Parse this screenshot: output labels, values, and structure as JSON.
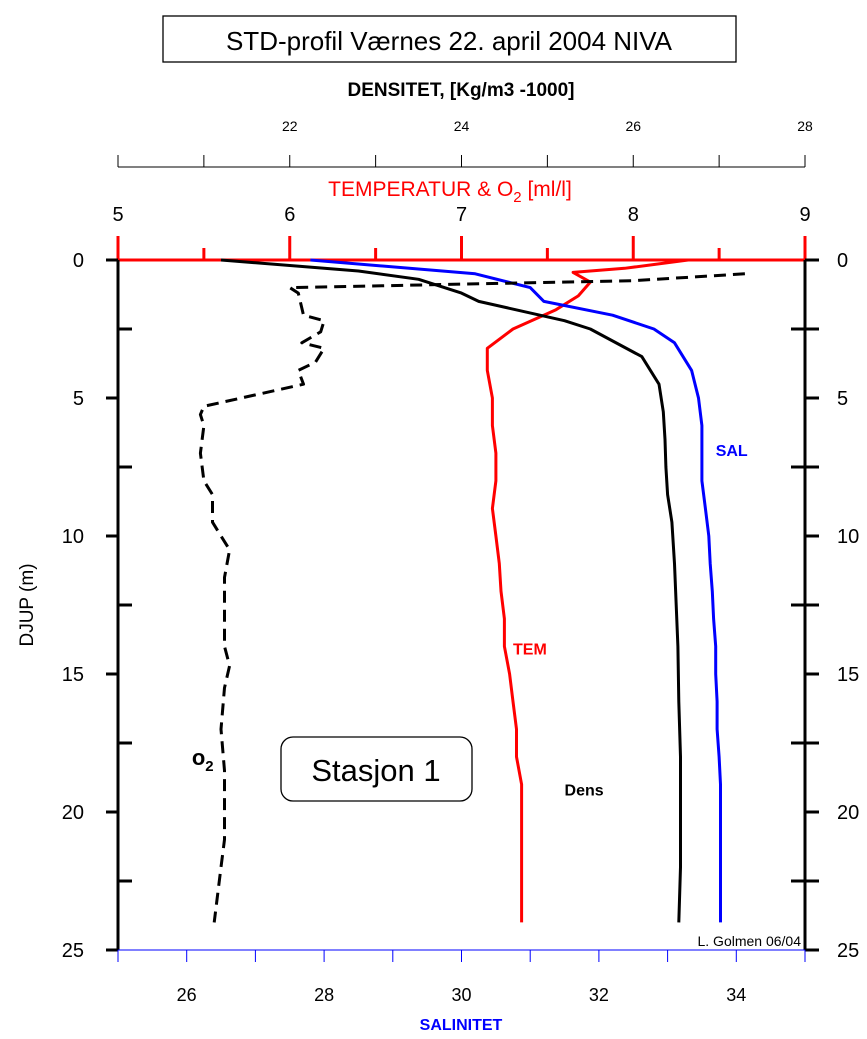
{
  "title": "STD-profil Værnes 22. april 2004 NIVA",
  "station_label": "Stasjon 1",
  "credit": "L. Golmen 06/04",
  "colors": {
    "temperature": "#ff0000",
    "salinity": "#0000ff",
    "density": "#000000",
    "oxygen": "#000000"
  },
  "chart_data": {
    "type": "line",
    "orientation": "vertical-profile",
    "axes": {
      "depth": {
        "label": "DJUP (m)",
        "ylim": [
          0,
          25
        ],
        "inverted": true,
        "ticks": [
          0,
          5,
          10,
          15,
          20,
          25
        ]
      },
      "density": {
        "label": "DENSITET, [Kg/m3 -1000]",
        "position": "top",
        "xlim": [
          20,
          28
        ],
        "ticks": [
          22,
          24,
          26,
          28
        ]
      },
      "temperature_o2": {
        "label_main": "TEMPERATUR & O",
        "label_sub": "2",
        "label_units": " [ml/l]",
        "position": "top",
        "xlim": [
          5,
          9
        ],
        "ticks": [
          5,
          6,
          7,
          8,
          9
        ]
      },
      "salinity": {
        "label": "SALINITET",
        "position": "bottom",
        "xlim": [
          25,
          35
        ],
        "ticks": [
          26,
          28,
          30,
          32,
          34
        ]
      }
    },
    "series": [
      {
        "name": "TEM",
        "axis": "temperature_o2",
        "color": "#ff0000",
        "dash": "solid",
        "label_pos": {
          "x": 7.3,
          "depth": 14.3
        },
        "points": [
          [
            8.32,
            0
          ],
          [
            7.95,
            0.3
          ],
          [
            7.65,
            0.45
          ],
          [
            7.75,
            0.8
          ],
          [
            7.68,
            1.3
          ],
          [
            7.55,
            1.8
          ],
          [
            7.3,
            2.5
          ],
          [
            7.15,
            3.2
          ],
          [
            7.15,
            4.0
          ],
          [
            7.18,
            5.0
          ],
          [
            7.18,
            6.0
          ],
          [
            7.2,
            7.0
          ],
          [
            7.2,
            8.0
          ],
          [
            7.18,
            9.0
          ],
          [
            7.2,
            10.0
          ],
          [
            7.22,
            11.0
          ],
          [
            7.23,
            12.0
          ],
          [
            7.25,
            13.0
          ],
          [
            7.25,
            14.0
          ],
          [
            7.28,
            15.0
          ],
          [
            7.3,
            16.0
          ],
          [
            7.32,
            17.0
          ],
          [
            7.32,
            18.0
          ],
          [
            7.35,
            19.0
          ],
          [
            7.35,
            20.0
          ],
          [
            7.35,
            21.0
          ],
          [
            7.35,
            22.0
          ],
          [
            7.35,
            23.0
          ],
          [
            7.35,
            24.0
          ]
        ]
      },
      {
        "name": "SAL",
        "axis": "salinity",
        "color": "#0000ff",
        "dash": "solid",
        "label_pos": {
          "x": 33.7,
          "depth": 7.1
        },
        "points": [
          [
            27.8,
            0
          ],
          [
            30.2,
            0.5
          ],
          [
            31.0,
            1.0
          ],
          [
            31.2,
            1.5
          ],
          [
            32.2,
            2.0
          ],
          [
            32.8,
            2.5
          ],
          [
            33.1,
            3.0
          ],
          [
            33.35,
            4.0
          ],
          [
            33.45,
            5.0
          ],
          [
            33.5,
            6.0
          ],
          [
            33.5,
            7.0
          ],
          [
            33.5,
            8.0
          ],
          [
            33.55,
            9.0
          ],
          [
            33.6,
            10.0
          ],
          [
            33.62,
            11.0
          ],
          [
            33.65,
            12.0
          ],
          [
            33.67,
            13.0
          ],
          [
            33.7,
            14.0
          ],
          [
            33.7,
            15.0
          ],
          [
            33.72,
            16.0
          ],
          [
            33.72,
            17.0
          ],
          [
            33.75,
            18.0
          ],
          [
            33.77,
            19.0
          ],
          [
            33.77,
            20.0
          ],
          [
            33.77,
            21.0
          ],
          [
            33.77,
            22.0
          ],
          [
            33.77,
            23.0
          ],
          [
            33.77,
            24.0
          ]
        ]
      },
      {
        "name": "Dens",
        "axis": "density",
        "color": "#000000",
        "dash": "solid",
        "label_pos": {
          "x": 25.2,
          "depth": 19.4
        },
        "points": [
          [
            21.2,
            0
          ],
          [
            22.8,
            0.4
          ],
          [
            23.5,
            0.7
          ],
          [
            24.0,
            1.2
          ],
          [
            24.2,
            1.5
          ],
          [
            25.2,
            2.2
          ],
          [
            25.5,
            2.5
          ],
          [
            26.1,
            3.5
          ],
          [
            26.3,
            4.5
          ],
          [
            26.35,
            5.5
          ],
          [
            26.37,
            6.5
          ],
          [
            26.38,
            7.5
          ],
          [
            26.4,
            8.5
          ],
          [
            26.45,
            9.5
          ],
          [
            26.48,
            11.0
          ],
          [
            26.5,
            12.5
          ],
          [
            26.52,
            14.0
          ],
          [
            26.53,
            16.0
          ],
          [
            26.55,
            18.0
          ],
          [
            26.55,
            20.0
          ],
          [
            26.55,
            22.0
          ],
          [
            26.53,
            24.0
          ]
        ]
      },
      {
        "name": "o2",
        "axis": "temperature_o2",
        "color": "#000000",
        "dash": "dashed",
        "label_main": "o",
        "label_sub": "2",
        "label_pos": {
          "x": 5.43,
          "depth": 18.3
        },
        "points": [
          [
            8.65,
            0.5
          ],
          [
            8.0,
            0.75
          ],
          [
            6.0,
            1.0
          ],
          [
            6.05,
            1.2
          ],
          [
            6.08,
            2.0
          ],
          [
            6.2,
            2.2
          ],
          [
            6.18,
            2.6
          ],
          [
            6.07,
            3.0
          ],
          [
            6.2,
            3.2
          ],
          [
            6.15,
            3.7
          ],
          [
            6.05,
            4.0
          ],
          [
            6.08,
            4.5
          ],
          [
            5.5,
            5.3
          ],
          [
            5.48,
            5.6
          ],
          [
            5.5,
            6.0
          ],
          [
            5.48,
            7.0
          ],
          [
            5.5,
            8.0
          ],
          [
            5.55,
            8.5
          ],
          [
            5.55,
            9.5
          ],
          [
            5.6,
            10.0
          ],
          [
            5.65,
            10.5
          ],
          [
            5.62,
            11.5
          ],
          [
            5.62,
            12.5
          ],
          [
            5.62,
            14.0
          ],
          [
            5.65,
            14.7
          ],
          [
            5.62,
            15.5
          ],
          [
            5.6,
            17.0
          ],
          [
            5.62,
            18.5
          ],
          [
            5.62,
            20.0
          ],
          [
            5.62,
            21.0
          ],
          [
            5.6,
            22.0
          ],
          [
            5.58,
            23.0
          ],
          [
            5.56,
            24.0
          ]
        ]
      }
    ]
  }
}
